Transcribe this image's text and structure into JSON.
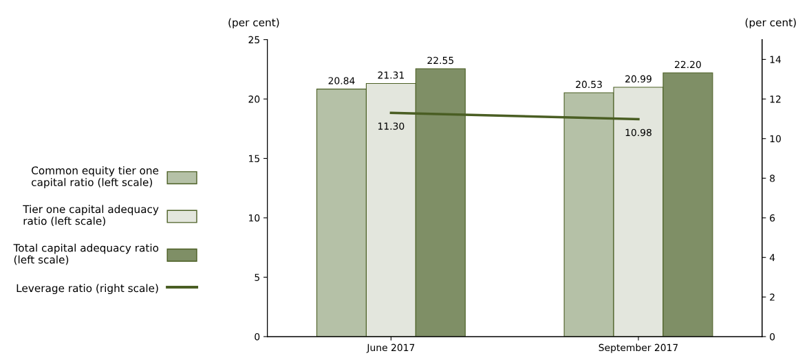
{
  "chart_data": {
    "type": "bar",
    "categories": [
      "June 2017",
      "September 2017"
    ],
    "series": [
      {
        "name": "Common equity tier one\ncapital ratio (left scale)",
        "color": "#b5c1a7",
        "values": [
          20.84,
          20.53
        ],
        "value_labels": [
          "20.84",
          "20.53"
        ]
      },
      {
        "name": "Tier one capital adequacy\nratio (left scale)",
        "color": "#e3e6dd",
        "values": [
          21.31,
          20.99
        ],
        "value_labels": [
          "21.31",
          "20.99"
        ]
      },
      {
        "name": "Total capital adequacy ratio\n(left scale)",
        "color": "#7f8f66",
        "values": [
          22.55,
          22.2
        ],
        "value_labels": [
          "22.55",
          "22.20"
        ]
      },
      {
        "name": "Leverage ratio (right scale)",
        "type": "line",
        "axis": "y2",
        "color": "#4a5e23",
        "values": [
          11.3,
          10.98
        ],
        "value_labels": [
          "11.30",
          "10.98"
        ]
      }
    ],
    "ylabel": "(per cent)",
    "y2label": "(per cent)",
    "ylim": [
      0,
      25
    ],
    "yticks": [
      0,
      5,
      10,
      15,
      20,
      25
    ],
    "y2lim": [
      0,
      15
    ],
    "y2ticks": [
      0,
      2,
      4,
      6,
      8,
      10,
      12,
      14
    ],
    "grid": false,
    "legend": "left",
    "marker": "none"
  }
}
